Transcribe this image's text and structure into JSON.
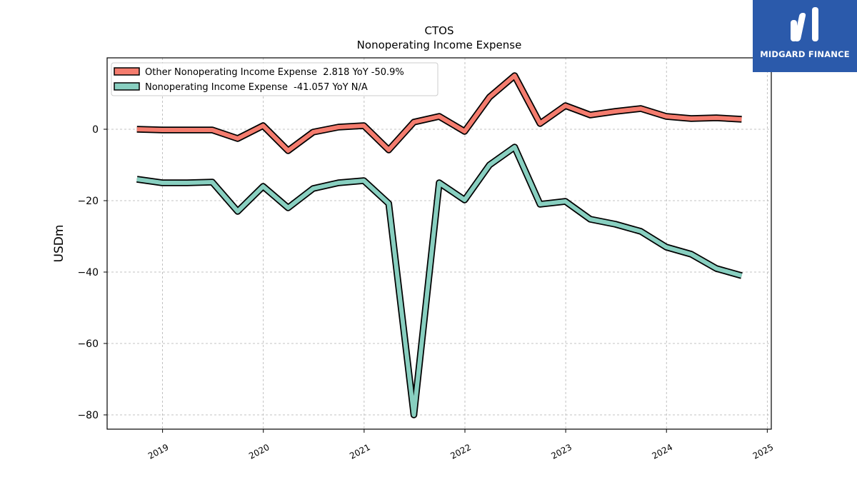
{
  "logo": {
    "text": "MIDGARD FINANCE"
  },
  "chart_data": {
    "type": "line",
    "title": "CTOS",
    "subtitle": "Nonoperating Income Expense",
    "ylabel": "USDm",
    "xlabel": "",
    "ylim": [
      -84,
      20
    ],
    "xlim": [
      2018.45,
      2025.04
    ],
    "yticks": [
      0,
      -20,
      -40,
      -60,
      -80
    ],
    "ytick_labels": [
      "0",
      "−20",
      "−40",
      "−60",
      "−80"
    ],
    "xticks": [
      2019,
      2020,
      2021,
      2022,
      2023,
      2024,
      2025
    ],
    "xtick_labels": [
      "2019",
      "2020",
      "2021",
      "2022",
      "2023",
      "2024",
      "2025"
    ],
    "grid": true,
    "legend_position": "top-left",
    "x": [
      "2018-09-30",
      "2018-12-31",
      "2019-03-31",
      "2019-06-30",
      "2019-09-30",
      "2019-12-31",
      "2020-03-31",
      "2020-06-30",
      "2020-09-30",
      "2020-12-31",
      "2021-03-31",
      "2021-06-30",
      "2021-09-30",
      "2021-12-31",
      "2022-03-31",
      "2022-06-30",
      "2022-09-30",
      "2022-12-31",
      "2023-03-31",
      "2023-06-30",
      "2023-09-30",
      "2023-12-31",
      "2024-03-31",
      "2024-06-30",
      "2024-09-30"
    ],
    "series": [
      {
        "name": "Other Nonoperating Income Expense",
        "legend_label": "Other Nonoperating Income Expense  2.818 YoY -50.9%",
        "color": "#f47c6e",
        "values": [
          0.0,
          -0.2,
          -0.2,
          -0.2,
          -2.6,
          1.0,
          -6.0,
          -0.8,
          0.6,
          1.0,
          -5.8,
          2.0,
          3.6,
          -0.6,
          9.0,
          15.0,
          1.6,
          6.6,
          4.0,
          5.0,
          5.8,
          3.6,
          3.0,
          3.2,
          2.8
        ]
      },
      {
        "name": "Nonoperating Income Expense",
        "legend_label": "Nonoperating Income Expense  -41.057 YoY N/A",
        "color": "#88cfc0",
        "values": [
          -14.0,
          -15.0,
          -15.0,
          -14.8,
          -23.0,
          -16.0,
          -22.0,
          -16.6,
          -15.0,
          -14.4,
          -20.8,
          -80.0,
          -15.0,
          -19.8,
          -10.0,
          -5.0,
          -21.0,
          -20.2,
          -25.2,
          -26.6,
          -28.6,
          -33.0,
          -35.0,
          -39.0,
          -41.0
        ]
      }
    ]
  }
}
